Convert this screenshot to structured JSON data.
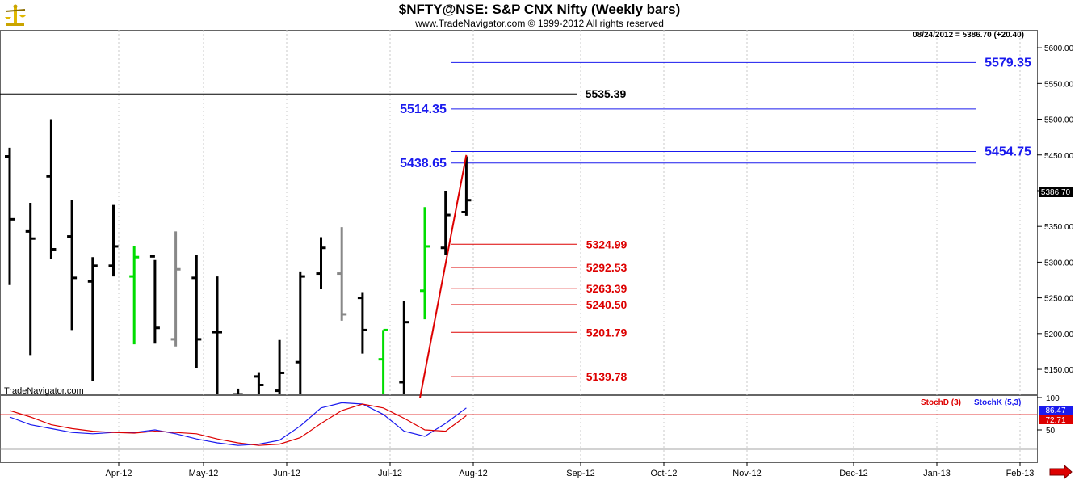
{
  "header": {
    "title": "$NFTY@NSE:  S&P CNX Nifty  (Weekly bars)",
    "copyright": "www.TradeNavigator.com © 1999-2012 All rights reserved",
    "last_bar_info": "08/24/2012 = 5386.70 (+20.40)",
    "watermark": "TradeNavigator.com",
    "last_price_tag": "5386.70"
  },
  "colors": {
    "bull_bar": "#00dd00",
    "gray_bar": "#888888",
    "bar": "#000000",
    "fib_target": "#1a1aee",
    "fib_retracement": "#dd0000",
    "stoch_d": "#dd0000",
    "stoch_k": "#1a1aee"
  },
  "chart_data": [
    {
      "type": "ohlc",
      "name": "price",
      "x_labels": [
        "Apr-12",
        "May-12",
        "Jun-12",
        "Jul-12",
        "Aug-12",
        "Sep-12",
        "Oct-12",
        "Nov-12",
        "Dec-12",
        "Jan-13",
        "Feb-13"
      ],
      "y_ticks": [
        "5600.00",
        "5550.00",
        "5500.00",
        "5450.00",
        "5400.00",
        "5350.00",
        "5300.00",
        "5250.00",
        "5200.00",
        "5150.00"
      ],
      "ylim": [
        5115,
        5625
      ],
      "bars": [
        {
          "o": 5448,
          "h": 5460,
          "l": 5268,
          "c": 5360,
          "color": "bar"
        },
        {
          "o": 5343,
          "h": 5383,
          "l": 5170,
          "c": 5333,
          "color": "bar"
        },
        {
          "o": 5420,
          "h": 5500,
          "l": 5305,
          "c": 5318,
          "color": "bar"
        },
        {
          "o": 5336,
          "h": 5387,
          "l": 5205,
          "c": 5278,
          "color": "bar"
        },
        {
          "o": 5273,
          "h": 5307,
          "l": 5134,
          "c": 5295,
          "color": "bar"
        },
        {
          "o": 5295,
          "h": 5380,
          "l": 5280,
          "c": 5322,
          "color": "bar"
        },
        {
          "o": 5280,
          "h": 5323,
          "l": 5185,
          "c": 5307,
          "color": "bull_bar"
        },
        {
          "o": 5308,
          "h": 5303,
          "l": 5186,
          "c": 5208,
          "color": "bar"
        },
        {
          "o": 5192,
          "h": 5343,
          "l": 5182,
          "c": 5290,
          "color": "gray_bar"
        },
        {
          "o": 5278,
          "h": 5310,
          "l": 5152,
          "c": 5192,
          "color": "bar"
        },
        {
          "o": 5202,
          "h": 5280,
          "l": 5110,
          "c": 5202,
          "color": "bar"
        },
        {
          "o": 5115,
          "h": 5123,
          "l": 5110,
          "c": 5115,
          "color": "bar"
        },
        {
          "o": 5140,
          "h": 5146,
          "l": 5110,
          "c": 5128,
          "color": "bar"
        },
        {
          "o": 5120,
          "h": 5191,
          "l": 5110,
          "c": 5145,
          "color": "bar"
        },
        {
          "o": 5160,
          "h": 5287,
          "l": 5110,
          "c": 5280,
          "color": "bar"
        },
        {
          "o": 5284,
          "h": 5335,
          "l": 5262,
          "c": 5320,
          "color": "bar"
        },
        {
          "o": 5284,
          "h": 5349,
          "l": 5218,
          "c": 5227,
          "color": "gray_bar"
        },
        {
          "o": 5250,
          "h": 5258,
          "l": 5172,
          "c": 5205,
          "color": "bar"
        },
        {
          "o": 5164,
          "h": 5205,
          "l": 5110,
          "c": 5205,
          "color": "bull_bar"
        },
        {
          "o": 5132,
          "h": 5246,
          "l": 5110,
          "c": 5216,
          "color": "bar"
        },
        {
          "o": 5260,
          "h": 5377,
          "l": 5220,
          "c": 5322,
          "color": "bull_bar"
        },
        {
          "o": 5320,
          "h": 5400,
          "l": 5310,
          "c": 5366,
          "color": "bar"
        },
        {
          "o": 5370,
          "h": 5448,
          "l": 5365,
          "c": 5386.7,
          "color": "bar"
        }
      ],
      "horizontal_levels": [
        {
          "value": 5579.35,
          "label": "5579.35",
          "color": "fib_target"
        },
        {
          "value": 5535.39,
          "label": "5535.39",
          "color": "bar"
        },
        {
          "value": 5514.35,
          "label": "5514.35",
          "color": "fib_target"
        },
        {
          "value": 5454.75,
          "label": "5454.75",
          "color": "fib_target"
        },
        {
          "value": 5438.65,
          "label": "5438.65",
          "color": "fib_target"
        },
        {
          "value": 5324.99,
          "label": "5324.99",
          "color": "fib_retracement"
        },
        {
          "value": 5292.53,
          "label": "5292.53",
          "color": "fib_retracement"
        },
        {
          "value": 5263.39,
          "label": "5263.39",
          "color": "fib_retracement"
        },
        {
          "value": 5240.5,
          "label": "5240.50",
          "color": "fib_retracement"
        },
        {
          "value": 5201.79,
          "label": "5201.79",
          "color": "fib_retracement"
        },
        {
          "value": 5139.78,
          "label": "5139.78",
          "color": "fib_retracement"
        }
      ],
      "trendline": {
        "from_bar": 20,
        "from_value": 5110,
        "to_bar": 22,
        "to_value": 5450
      }
    },
    {
      "type": "line",
      "name": "stochastic",
      "y_ticks": [
        "100",
        "50"
      ],
      "ylim": [
        0,
        100
      ],
      "legend": [
        "StochD (3)",
        "StochK (5,3)"
      ],
      "last_values": [
        "86.47",
        "72.71"
      ],
      "series": [
        {
          "name": "StochK (5,3)",
          "values": [
            70,
            58,
            52,
            46,
            44,
            46,
            46,
            50,
            44,
            36,
            30,
            26,
            28,
            34,
            56,
            84,
            92,
            90,
            74,
            48,
            40,
            60,
            84
          ]
        },
        {
          "name": "StochD (3)",
          "values": [
            80,
            70,
            58,
            52,
            48,
            46,
            45,
            48,
            46,
            44,
            36,
            30,
            26,
            28,
            38,
            60,
            80,
            90,
            84,
            68,
            50,
            48,
            72
          ]
        }
      ]
    }
  ]
}
